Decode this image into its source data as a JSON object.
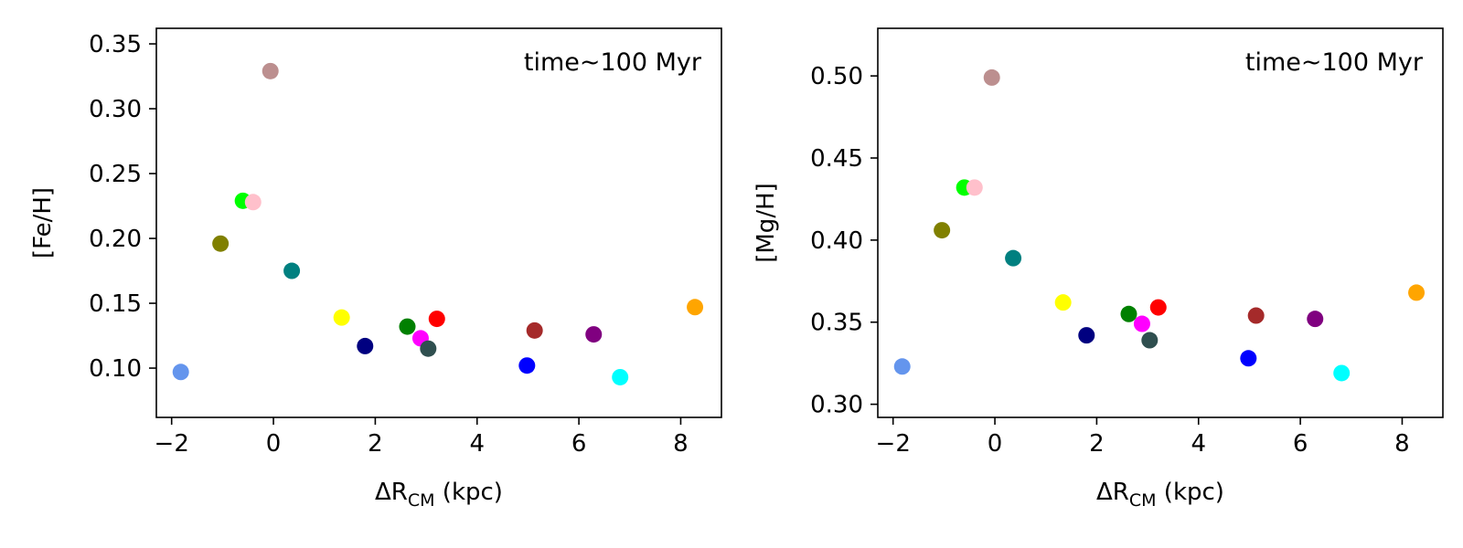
{
  "chart_data": [
    {
      "type": "scatter",
      "title": "",
      "annotation": "time~100 Myr",
      "xlabel": {
        "prefix": "ΔR",
        "subscript": "CM",
        "suffix": " (kpc)"
      },
      "ylabel": "[Fe/H]",
      "xlim": [
        -2.3,
        8.8
      ],
      "ylim": [
        0.062,
        0.362
      ],
      "xticks": [
        -2,
        0,
        2,
        4,
        6,
        8
      ],
      "xtick_labels": [
        "−2",
        "0",
        "2",
        "4",
        "6",
        "8"
      ],
      "yticks": [
        0.1,
        0.15,
        0.2,
        0.25,
        0.3,
        0.35
      ],
      "ytick_labels": [
        "0.10",
        "0.15",
        "0.20",
        "0.25",
        "0.30",
        "0.35"
      ],
      "grid": false,
      "points": [
        {
          "x": -1.82,
          "y": 0.097,
          "color": "#6495ED"
        },
        {
          "x": -1.04,
          "y": 0.196,
          "color": "#808000"
        },
        {
          "x": -0.6,
          "y": 0.229,
          "color": "#00FF00"
        },
        {
          "x": -0.4,
          "y": 0.228,
          "color": "#FFC0CB"
        },
        {
          "x": -0.06,
          "y": 0.329,
          "color": "#BC8F8F"
        },
        {
          "x": 0.36,
          "y": 0.175,
          "color": "#008080"
        },
        {
          "x": 1.34,
          "y": 0.139,
          "color": "#FFFF00"
        },
        {
          "x": 1.8,
          "y": 0.117,
          "color": "#000080"
        },
        {
          "x": 2.63,
          "y": 0.132,
          "color": "#008000"
        },
        {
          "x": 2.89,
          "y": 0.123,
          "color": "#FF00FF"
        },
        {
          "x": 3.04,
          "y": 0.115,
          "color": "#2F4F4F"
        },
        {
          "x": 3.21,
          "y": 0.138,
          "color": "#FF0000"
        },
        {
          "x": 4.98,
          "y": 0.102,
          "color": "#0000FF"
        },
        {
          "x": 5.13,
          "y": 0.129,
          "color": "#A52A2A"
        },
        {
          "x": 6.29,
          "y": 0.126,
          "color": "#800080"
        },
        {
          "x": 6.81,
          "y": 0.093,
          "color": "#00FFFF"
        },
        {
          "x": 8.28,
          "y": 0.147,
          "color": "#FFA500"
        }
      ]
    },
    {
      "type": "scatter",
      "title": "",
      "annotation": "time~100 Myr",
      "xlabel": {
        "prefix": "ΔR",
        "subscript": "CM",
        "suffix": " (kpc)"
      },
      "ylabel": "[Mg/H]",
      "xlim": [
        -2.3,
        8.8
      ],
      "ylim": [
        0.292,
        0.529
      ],
      "xticks": [
        -2,
        0,
        2,
        4,
        6,
        8
      ],
      "xtick_labels": [
        "−2",
        "0",
        "2",
        "4",
        "6",
        "8"
      ],
      "yticks": [
        0.3,
        0.35,
        0.4,
        0.45,
        0.5
      ],
      "ytick_labels": [
        "0.30",
        "0.35",
        "0.40",
        "0.45",
        "0.50"
      ],
      "grid": false,
      "points": [
        {
          "x": -1.82,
          "y": 0.323,
          "color": "#6495ED"
        },
        {
          "x": -1.04,
          "y": 0.406,
          "color": "#808000"
        },
        {
          "x": -0.6,
          "y": 0.432,
          "color": "#00FF00"
        },
        {
          "x": -0.4,
          "y": 0.432,
          "color": "#FFC0CB"
        },
        {
          "x": -0.06,
          "y": 0.499,
          "color": "#BC8F8F"
        },
        {
          "x": 0.36,
          "y": 0.389,
          "color": "#008080"
        },
        {
          "x": 1.34,
          "y": 0.362,
          "color": "#FFFF00"
        },
        {
          "x": 1.8,
          "y": 0.342,
          "color": "#000080"
        },
        {
          "x": 2.63,
          "y": 0.355,
          "color": "#008000"
        },
        {
          "x": 2.89,
          "y": 0.349,
          "color": "#FF00FF"
        },
        {
          "x": 3.04,
          "y": 0.339,
          "color": "#2F4F4F"
        },
        {
          "x": 3.21,
          "y": 0.359,
          "color": "#FF0000"
        },
        {
          "x": 4.98,
          "y": 0.328,
          "color": "#0000FF"
        },
        {
          "x": 5.13,
          "y": 0.354,
          "color": "#A52A2A"
        },
        {
          "x": 6.29,
          "y": 0.352,
          "color": "#800080"
        },
        {
          "x": 6.81,
          "y": 0.319,
          "color": "#00FFFF"
        },
        {
          "x": 8.28,
          "y": 0.368,
          "color": "#FFA500"
        }
      ]
    }
  ]
}
